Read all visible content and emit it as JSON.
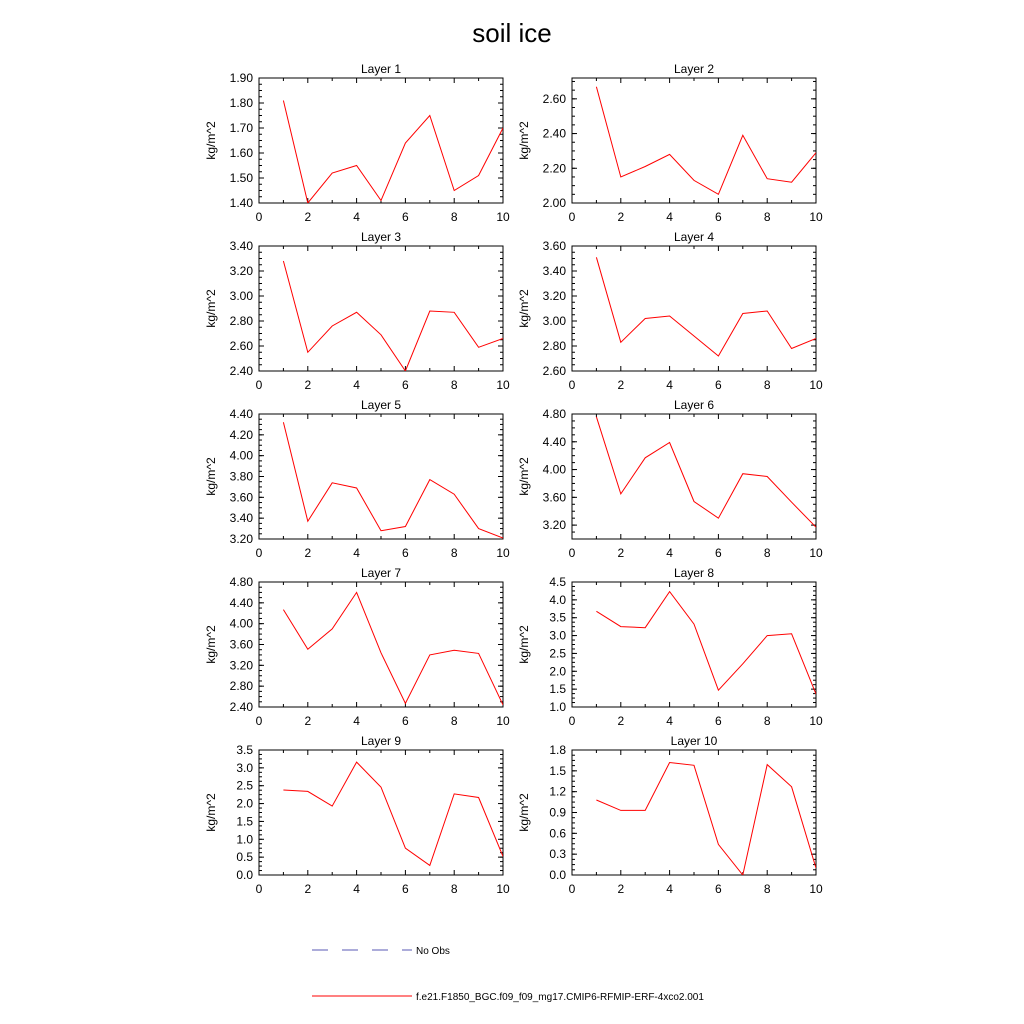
{
  "figure": {
    "title": "soil ice"
  },
  "legend": {
    "obs_label": "No Obs",
    "model_label": "f.e21.F1850_BGC.f09_f09_mg17.CMIP6-RFMIP-ERF-4xco2.001",
    "obs_color": "#5a5ab4",
    "model_color": "#ff0000"
  },
  "chart_data": [
    {
      "type": "line",
      "title": "Layer 1",
      "ylabel": "kg/m^2",
      "xlim": [
        0,
        10
      ],
      "ylim": [
        1.4,
        1.9
      ],
      "xticks": [
        0,
        2,
        4,
        6,
        8,
        10
      ],
      "yticks": [
        1.4,
        1.5,
        1.6,
        1.7,
        1.8,
        1.9
      ],
      "ydec": 2,
      "x": [
        1,
        2,
        3,
        4,
        5,
        6,
        7,
        8,
        9,
        10
      ],
      "series": [
        {
          "values": [
            1.81,
            1.4,
            1.52,
            1.55,
            1.41,
            1.64,
            1.75,
            1.45,
            1.51,
            1.7
          ]
        }
      ]
    },
    {
      "type": "line",
      "title": "Layer 2",
      "ylabel": "kg/m^2",
      "xlim": [
        0,
        10
      ],
      "ylim": [
        2.0,
        2.72
      ],
      "xticks": [
        0,
        2,
        4,
        6,
        8,
        10
      ],
      "yticks": [
        2.0,
        2.2,
        2.4,
        2.6
      ],
      "ydec": 2,
      "x": [
        1,
        2,
        3,
        4,
        5,
        6,
        7,
        8,
        9,
        10
      ],
      "series": [
        {
          "values": [
            2.67,
            2.15,
            2.21,
            2.28,
            2.13,
            2.05,
            2.39,
            2.14,
            2.12,
            2.29
          ]
        }
      ]
    },
    {
      "type": "line",
      "title": "Layer 3",
      "ylabel": "kg/m^2",
      "xlim": [
        0,
        10
      ],
      "ylim": [
        2.4,
        3.4
      ],
      "xticks": [
        0,
        2,
        4,
        6,
        8,
        10
      ],
      "yticks": [
        2.4,
        2.6,
        2.8,
        3.0,
        3.2,
        3.4
      ],
      "ydec": 2,
      "x": [
        1,
        2,
        3,
        4,
        5,
        6,
        7,
        8,
        9,
        10
      ],
      "series": [
        {
          "values": [
            3.28,
            2.55,
            2.76,
            2.87,
            2.69,
            2.4,
            2.88,
            2.87,
            2.59,
            2.66
          ]
        }
      ]
    },
    {
      "type": "line",
      "title": "Layer 4",
      "ylabel": "kg/m^2",
      "xlim": [
        0,
        10
      ],
      "ylim": [
        2.6,
        3.6
      ],
      "xticks": [
        0,
        2,
        4,
        6,
        8,
        10
      ],
      "yticks": [
        2.6,
        2.8,
        3.0,
        3.2,
        3.4,
        3.6
      ],
      "ydec": 2,
      "x": [
        1,
        2,
        3,
        4,
        5,
        6,
        7,
        8,
        9,
        10
      ],
      "series": [
        {
          "values": [
            3.51,
            2.83,
            3.02,
            3.04,
            2.88,
            2.72,
            3.06,
            3.08,
            2.78,
            2.86
          ]
        }
      ]
    },
    {
      "type": "line",
      "title": "Layer 5",
      "ylabel": "kg/m^2",
      "xlim": [
        0,
        10
      ],
      "ylim": [
        3.2,
        4.4
      ],
      "xticks": [
        0,
        2,
        4,
        6,
        8,
        10
      ],
      "yticks": [
        3.2,
        3.4,
        3.6,
        3.8,
        4.0,
        4.2,
        4.4
      ],
      "ydec": 2,
      "x": [
        1,
        2,
        3,
        4,
        5,
        6,
        7,
        8,
        9,
        10
      ],
      "series": [
        {
          "values": [
            4.32,
            3.37,
            3.74,
            3.69,
            3.28,
            3.32,
            3.77,
            3.63,
            3.3,
            3.21
          ]
        }
      ]
    },
    {
      "type": "line",
      "title": "Layer 6",
      "ylabel": "kg/m^2",
      "xlim": [
        0,
        10
      ],
      "ylim": [
        3.0,
        4.8
      ],
      "xticks": [
        0,
        2,
        4,
        6,
        8,
        10
      ],
      "yticks": [
        3.2,
        3.6,
        4.0,
        4.4,
        4.8
      ],
      "ydec": 2,
      "x": [
        1,
        2,
        3,
        4,
        5,
        6,
        7,
        8,
        9,
        10
      ],
      "series": [
        {
          "values": [
            4.76,
            3.65,
            4.17,
            4.39,
            3.54,
            3.3,
            3.94,
            3.9,
            3.53,
            3.17
          ]
        }
      ]
    },
    {
      "type": "line",
      "title": "Layer 7",
      "ylabel": "kg/m^2",
      "xlim": [
        0,
        10
      ],
      "ylim": [
        2.4,
        4.8
      ],
      "xticks": [
        0,
        2,
        4,
        6,
        8,
        10
      ],
      "yticks": [
        2.4,
        2.8,
        3.2,
        3.6,
        4.0,
        4.4,
        4.8
      ],
      "ydec": 2,
      "x": [
        1,
        2,
        3,
        4,
        5,
        6,
        7,
        8,
        9,
        10
      ],
      "series": [
        {
          "values": [
            4.27,
            3.51,
            3.9,
            4.6,
            3.44,
            2.47,
            3.4,
            3.49,
            3.43,
            2.44
          ]
        }
      ]
    },
    {
      "type": "line",
      "title": "Layer 8",
      "ylabel": "kg/m^2",
      "xlim": [
        0,
        10
      ],
      "ylim": [
        1.0,
        4.5
      ],
      "xticks": [
        0,
        2,
        4,
        6,
        8,
        10
      ],
      "yticks": [
        1.0,
        1.5,
        2.0,
        2.5,
        3.0,
        3.5,
        4.0,
        4.5
      ],
      "ydec": 1,
      "x": [
        1,
        2,
        3,
        4,
        5,
        6,
        7,
        8,
        9,
        10
      ],
      "series": [
        {
          "values": [
            3.68,
            3.25,
            3.22,
            4.23,
            3.32,
            1.47,
            2.21,
            3.0,
            3.05,
            1.36
          ]
        }
      ]
    },
    {
      "type": "line",
      "title": "Layer 9",
      "ylabel": "kg/m^2",
      "xlim": [
        0,
        10
      ],
      "ylim": [
        0.0,
        3.5
      ],
      "xticks": [
        0,
        2,
        4,
        6,
        8,
        10
      ],
      "yticks": [
        0.0,
        0.5,
        1.0,
        1.5,
        2.0,
        2.5,
        3.0,
        3.5
      ],
      "ydec": 1,
      "x": [
        1,
        2,
        3,
        4,
        5,
        6,
        7,
        8,
        9,
        10
      ],
      "series": [
        {
          "values": [
            2.38,
            2.34,
            1.93,
            3.16,
            2.46,
            0.75,
            0.27,
            2.27,
            2.17,
            0.52
          ]
        }
      ]
    },
    {
      "type": "line",
      "title": "Layer 10",
      "ylabel": "kg/m^2",
      "xlim": [
        0,
        10
      ],
      "ylim": [
        0.0,
        1.8
      ],
      "xticks": [
        0,
        2,
        4,
        6,
        8,
        10
      ],
      "yticks": [
        0.0,
        0.3,
        0.6,
        0.9,
        1.2,
        1.5,
        1.8
      ],
      "ydec": 1,
      "x": [
        1,
        2,
        3,
        4,
        5,
        6,
        7,
        8,
        9,
        10
      ],
      "series": [
        {
          "values": [
            1.08,
            0.93,
            0.93,
            1.62,
            1.58,
            0.44,
            0.0,
            1.59,
            1.27,
            0.1
          ]
        }
      ]
    }
  ]
}
